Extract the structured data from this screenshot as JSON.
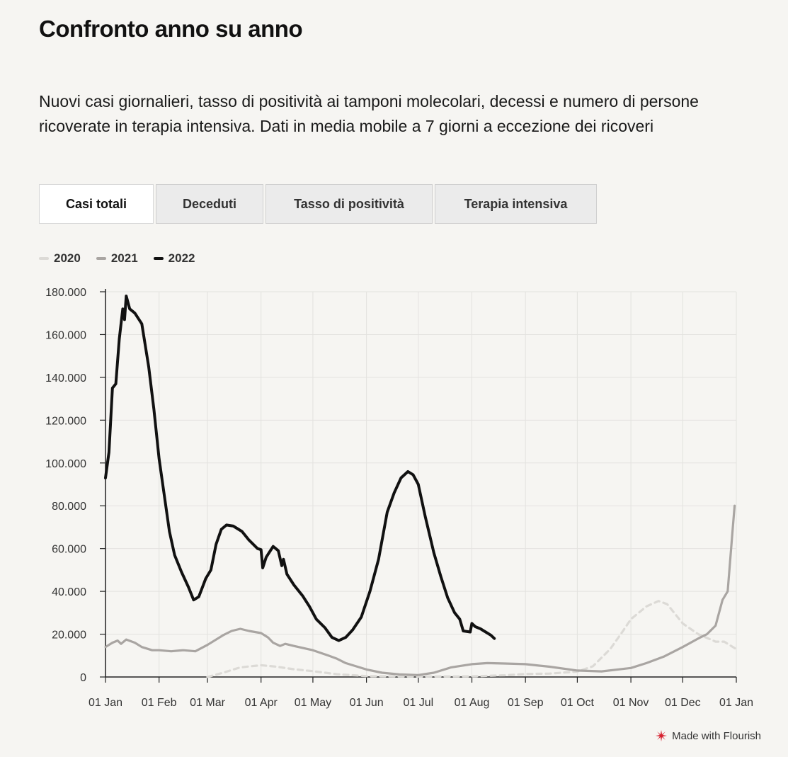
{
  "header": {
    "title": "Confronto anno su anno",
    "subtitle": "Nuovi casi giornalieri, tasso di positività ai tamponi molecolari, decessi e numero di persone ricoverate in terapia intensiva. Dati in media mobile a 7 giorni a eccezione dei ricoveri"
  },
  "tabs": [
    {
      "label": "Casi totali",
      "active": true
    },
    {
      "label": "Deceduti",
      "active": false
    },
    {
      "label": "Tasso di positività",
      "active": false
    },
    {
      "label": "Terapia intensiva",
      "active": false
    }
  ],
  "footer": {
    "label": "Made with Flourish",
    "icon": "flourish-logo-icon"
  },
  "chart_data": {
    "type": "line",
    "title": "",
    "xlabel": "",
    "ylabel": "",
    "x_axis": "day of year",
    "xlim": [
      "01 Jan",
      "01 Jan"
    ],
    "ylim": [
      0,
      180000
    ],
    "y_ticks": [
      0,
      20000,
      40000,
      60000,
      80000,
      100000,
      120000,
      140000,
      160000,
      180000
    ],
    "y_tick_labels": [
      "0",
      "20.000",
      "40.000",
      "60.000",
      "80.000",
      "100.000",
      "120.000",
      "140.000",
      "160.000",
      "180.000"
    ],
    "x_tick_labels": [
      "01 Jan",
      "01 Feb",
      "01 Mar",
      "01 Apr",
      "01 May",
      "01 Jun",
      "01 Jul",
      "01 Aug",
      "01 Sep",
      "01 Oct",
      "01 Nov",
      "01 Dec",
      "01 Jan"
    ],
    "grid": true,
    "legend_position": "top-left",
    "series": [
      {
        "name": "2020",
        "color": "#dcdad6",
        "style": "dashed",
        "points": [
          [
            "01 Mar",
            0
          ],
          [
            "10 Mar",
            2000
          ],
          [
            "20 Mar",
            4500
          ],
          [
            "01 Apr",
            5500
          ],
          [
            "10 Apr",
            4800
          ],
          [
            "20 Apr",
            3600
          ],
          [
            "01 May",
            2700
          ],
          [
            "15 May",
            1300
          ],
          [
            "01 Jun",
            400
          ],
          [
            "01 Jul",
            200
          ],
          [
            "01 Aug",
            300
          ],
          [
            "20 Aug",
            800
          ],
          [
            "01 Sep",
            1400
          ],
          [
            "15 Sep",
            1600
          ],
          [
            "01 Oct",
            2500
          ],
          [
            "10 Oct",
            5000
          ],
          [
            "20 Oct",
            13000
          ],
          [
            "27 Oct",
            21000
          ],
          [
            "01 Nov",
            27000
          ],
          [
            "10 Nov",
            33000
          ],
          [
            "17 Nov",
            35500
          ],
          [
            "22 Nov",
            34000
          ],
          [
            "01 Dec",
            25000
          ],
          [
            "10 Dec",
            20000
          ],
          [
            "20 Dec",
            16500
          ],
          [
            "25 Dec",
            16500
          ],
          [
            "01 Jan",
            13000
          ]
        ]
      },
      {
        "name": "2021",
        "color": "#a9a5a2",
        "style": "solid",
        "points": [
          [
            "01 Jan",
            14000
          ],
          [
            "05 Jan",
            16000
          ],
          [
            "08 Jan",
            17000
          ],
          [
            "10 Jan",
            15500
          ],
          [
            "13 Jan",
            17500
          ],
          [
            "18 Jan",
            16000
          ],
          [
            "22 Jan",
            14000
          ],
          [
            "28 Jan",
            12500
          ],
          [
            "01 Feb",
            12500
          ],
          [
            "08 Feb",
            12000
          ],
          [
            "15 Feb",
            12500
          ],
          [
            "22 Feb",
            12000
          ],
          [
            "01 Mar",
            15000
          ],
          [
            "10 Mar",
            19500
          ],
          [
            "15 Mar",
            21500
          ],
          [
            "20 Mar",
            22500
          ],
          [
            "25 Mar",
            21500
          ],
          [
            "01 Apr",
            20500
          ],
          [
            "05 Apr",
            18500
          ],
          [
            "08 Apr",
            16000
          ],
          [
            "12 Apr",
            14500
          ],
          [
            "15 Apr",
            15500
          ],
          [
            "20 Apr",
            14500
          ],
          [
            "01 May",
            12500
          ],
          [
            "10 May",
            10000
          ],
          [
            "15 May",
            8500
          ],
          [
            "20 May",
            6500
          ],
          [
            "01 Jun",
            3500
          ],
          [
            "10 Jun",
            2000
          ],
          [
            "20 Jun",
            1200
          ],
          [
            "01 Jul",
            900
          ],
          [
            "10 Jul",
            2000
          ],
          [
            "20 Jul",
            4500
          ],
          [
            "01 Aug",
            6000
          ],
          [
            "10 Aug",
            6500
          ],
          [
            "20 Aug",
            6300
          ],
          [
            "01 Sep",
            6000
          ],
          [
            "15 Sep",
            4800
          ],
          [
            "01 Oct",
            3000
          ],
          [
            "15 Oct",
            2600
          ],
          [
            "01 Nov",
            4200
          ],
          [
            "10 Nov",
            6500
          ],
          [
            "20 Nov",
            9500
          ],
          [
            "01 Dec",
            14000
          ],
          [
            "10 Dec",
            18000
          ],
          [
            "15 Dec",
            20000
          ],
          [
            "20 Dec",
            24000
          ],
          [
            "24 Dec",
            36000
          ],
          [
            "27 Dec",
            40000
          ],
          [
            "30 Dec",
            70000
          ],
          [
            "31 Dec",
            80000
          ]
        ]
      },
      {
        "name": "2022",
        "color": "#111111",
        "style": "solid",
        "points": [
          [
            "01 Jan",
            93000
          ],
          [
            "03 Jan",
            105000
          ],
          [
            "05 Jan",
            135000
          ],
          [
            "07 Jan",
            137000
          ],
          [
            "09 Jan",
            158000
          ],
          [
            "11 Jan",
            172000
          ],
          [
            "12 Jan",
            167000
          ],
          [
            "13 Jan",
            178000
          ],
          [
            "15 Jan",
            172000
          ],
          [
            "18 Jan",
            170000
          ],
          [
            "22 Jan",
            165000
          ],
          [
            "26 Jan",
            145000
          ],
          [
            "29 Jan",
            125000
          ],
          [
            "01 Feb",
            102000
          ],
          [
            "04 Feb",
            85000
          ],
          [
            "07 Feb",
            68000
          ],
          [
            "10 Feb",
            57000
          ],
          [
            "14 Feb",
            49000
          ],
          [
            "18 Feb",
            42000
          ],
          [
            "21 Feb",
            36000
          ],
          [
            "24 Feb",
            37500
          ],
          [
            "28 Feb",
            46000
          ],
          [
            "03 Mar",
            50000
          ],
          [
            "06 Mar",
            62000
          ],
          [
            "09 Mar",
            69000
          ],
          [
            "12 Mar",
            71000
          ],
          [
            "16 Mar",
            70500
          ],
          [
            "18 Mar",
            69500
          ],
          [
            "21 Mar",
            68000
          ],
          [
            "25 Mar",
            64000
          ],
          [
            "30 Mar",
            60000
          ],
          [
            "01 Apr",
            59500
          ],
          [
            "02 Apr",
            51000
          ],
          [
            "04 Apr",
            56000
          ],
          [
            "08 Apr",
            61000
          ],
          [
            "11 Apr",
            59000
          ],
          [
            "13 Apr",
            52000
          ],
          [
            "14 Apr",
            55000
          ],
          [
            "16 Apr",
            48000
          ],
          [
            "20 Apr",
            43000
          ],
          [
            "25 Apr",
            38000
          ],
          [
            "29 Apr",
            33000
          ],
          [
            "03 May",
            27000
          ],
          [
            "08 May",
            23000
          ],
          [
            "12 May",
            18500
          ],
          [
            "16 May",
            17000
          ],
          [
            "20 May",
            18500
          ],
          [
            "24 May",
            22000
          ],
          [
            "29 May",
            28000
          ],
          [
            "03 Jun",
            40000
          ],
          [
            "08 Jun",
            55000
          ],
          [
            "13 Jun",
            77000
          ],
          [
            "17 Jun",
            86000
          ],
          [
            "21 Jun",
            93000
          ],
          [
            "25 Jun",
            96000
          ],
          [
            "28 Jun",
            94500
          ],
          [
            "01 Jul",
            90000
          ],
          [
            "05 Jul",
            75000
          ],
          [
            "10 Jul",
            58000
          ],
          [
            "14 Jul",
            47000
          ],
          [
            "18 Jul",
            37000
          ],
          [
            "22 Jul",
            30000
          ],
          [
            "25 Jul",
            27000
          ],
          [
            "27 Jul",
            21500
          ],
          [
            "31 Jul",
            21000
          ],
          [
            "01 Aug",
            25000
          ],
          [
            "03 Aug",
            23500
          ],
          [
            "06 Aug",
            22500
          ],
          [
            "09 Aug",
            21000
          ],
          [
            "12 Aug",
            19500
          ],
          [
            "14 Aug",
            18000
          ]
        ]
      }
    ]
  }
}
